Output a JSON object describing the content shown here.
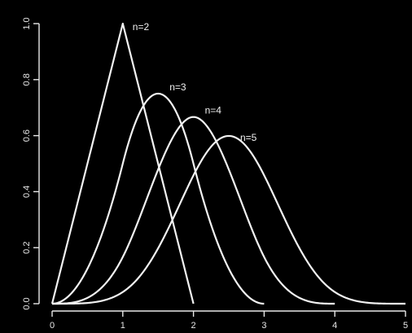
{
  "chart_data": {
    "type": "line",
    "title": "",
    "xlabel": "",
    "ylabel": "",
    "xlim": [
      0,
      5
    ],
    "ylim": [
      0,
      1
    ],
    "x_ticks": [
      0,
      1,
      2,
      3,
      4,
      5
    ],
    "y_ticks": [
      0.0,
      0.2,
      0.4,
      0.6,
      0.8,
      1.0
    ],
    "x_tick_labels": [
      "0",
      "1",
      "2",
      "3",
      "4",
      "5"
    ],
    "y_tick_labels": [
      "0.0",
      "0.2",
      "0.4",
      "0.6",
      "0.8",
      "1.0"
    ],
    "grid": false,
    "colors": {
      "background": "#000000",
      "foreground": "#f2f2f2"
    },
    "series": [
      {
        "name": "n=2",
        "support": [
          0,
          2
        ],
        "peak": [
          1.0,
          1.0
        ]
      },
      {
        "name": "n=3",
        "support": [
          0,
          3
        ],
        "peak": [
          1.5,
          0.75
        ]
      },
      {
        "name": "n=4",
        "support": [
          0,
          4
        ],
        "peak": [
          2.0,
          0.667
        ]
      },
      {
        "name": "n=5",
        "support": [
          0,
          5
        ],
        "peak": [
          2.5,
          0.599
        ]
      }
    ]
  }
}
